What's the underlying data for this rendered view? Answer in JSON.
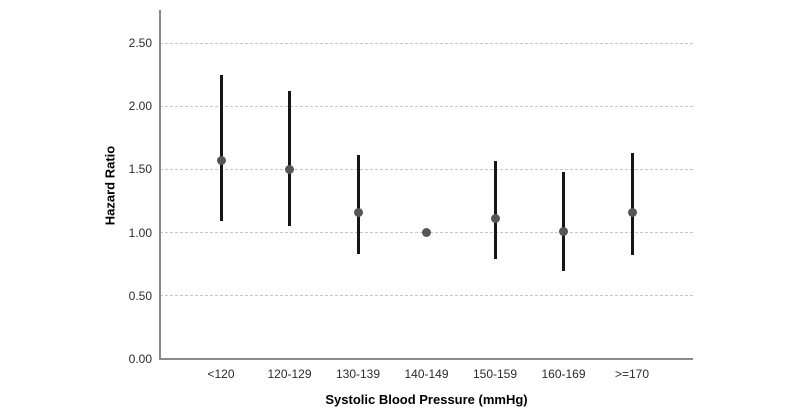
{
  "chart_data": {
    "type": "scatter",
    "subtype": "error-bar-plot",
    "title": "",
    "xlabel": "Systolic Blood Pressure (mmHg)",
    "ylabel": "Hazard Ratio",
    "categories": [
      "<120",
      "120-129",
      "130-139",
      "140-149",
      "150-159",
      "160-169",
      ">=170"
    ],
    "series": [
      {
        "name": "Hazard Ratio",
        "values": [
          1.57,
          1.5,
          1.16,
          1.0,
          1.11,
          1.01,
          1.16
        ],
        "ci_low": [
          1.09,
          1.05,
          0.83,
          null,
          0.79,
          0.7,
          0.82
        ],
        "ci_high": [
          2.25,
          2.12,
          1.61,
          null,
          1.57,
          1.48,
          1.63
        ]
      }
    ],
    "reference_category": "140-149",
    "ylim": [
      0.0,
      2.77
    ],
    "ytick_step": 0.5,
    "yticks": [
      "0.00",
      "0.50",
      "1.00",
      "1.50",
      "2.00",
      "2.50"
    ],
    "grid": "horizontal-dashed",
    "legend_position": "none"
  },
  "colors": {
    "background": "#ffffff",
    "axis_line": "#8a8a8a",
    "gridline": "#c6c6c6",
    "error_bar": "#161616",
    "point": "#565656",
    "tick_text": "#2b2b2b",
    "title_text": "#000000"
  }
}
